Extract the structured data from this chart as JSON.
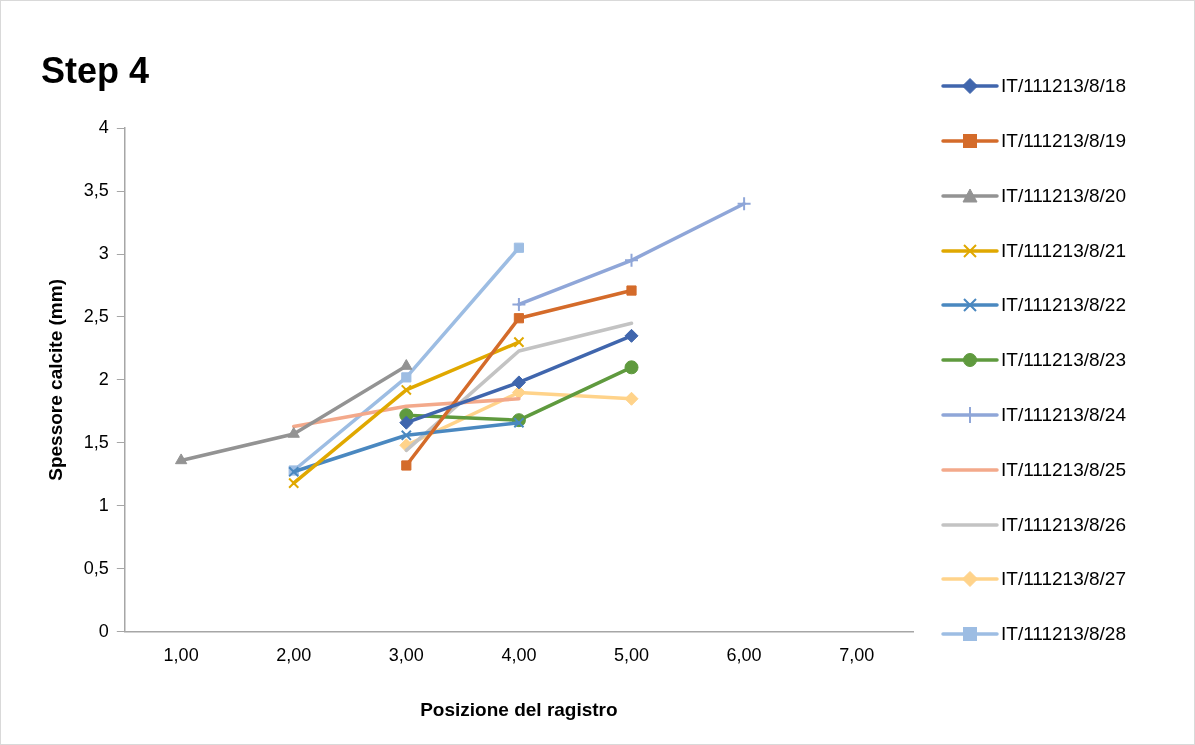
{
  "chart_data": {
    "type": "line",
    "title": "Step 4",
    "xlabel": "Posizione del ragistro",
    "ylabel": "Spessore calcite (mm)",
    "categories": [
      "1,00",
      "2,00",
      "3,00",
      "4,00",
      "5,00",
      "6,00",
      "7,00"
    ],
    "ylim": [
      0,
      4
    ],
    "yticks": [
      0,
      {
        "value": 0.5,
        "label": "0,5"
      },
      1,
      {
        "value": 1.5,
        "label": "1,5"
      },
      2,
      {
        "value": 2.5,
        "label": "2,5"
      },
      3,
      {
        "value": 3.5,
        "label": "3,5"
      },
      4
    ],
    "grid": false,
    "legend": "right",
    "series": [
      {
        "name": "IT/111213/8/18",
        "color": "#4066ad",
        "marker": "diamond",
        "values": [
          null,
          null,
          1.66,
          1.98,
          2.35,
          null,
          null
        ]
      },
      {
        "name": "IT/111213/8/19",
        "color": "#d46b2a",
        "marker": "square",
        "values": [
          null,
          null,
          1.32,
          2.49,
          2.71,
          null,
          null
        ]
      },
      {
        "name": "IT/111213/8/20",
        "color": "#939393",
        "marker": "triangle",
        "values": [
          1.36,
          1.57,
          2.11,
          null,
          null,
          null,
          null
        ]
      },
      {
        "name": "IT/111213/8/21",
        "color": "#e0a800",
        "marker": "cross",
        "values": [
          null,
          1.18,
          1.92,
          2.3,
          null,
          null,
          null
        ]
      },
      {
        "name": "IT/111213/8/22",
        "color": "#4a88c0",
        "marker": "cross",
        "values": [
          null,
          1.27,
          1.56,
          1.66,
          null,
          null,
          null
        ]
      },
      {
        "name": "IT/111213/8/23",
        "color": "#5f9a3e",
        "marker": "circle",
        "values": [
          null,
          null,
          1.72,
          1.68,
          2.1,
          null,
          null
        ]
      },
      {
        "name": "IT/111213/8/24",
        "color": "#8fa6d8",
        "marker": "plus",
        "values": [
          null,
          null,
          null,
          2.6,
          2.95,
          3.4,
          null
        ]
      },
      {
        "name": "IT/111213/8/25",
        "color": "#f3a98b",
        "marker": "none",
        "values": [
          null,
          1.63,
          1.79,
          1.85,
          null,
          null,
          null
        ]
      },
      {
        "name": "IT/111213/8/26",
        "color": "#c3c3c3",
        "marker": "none",
        "values": [
          null,
          null,
          1.44,
          2.23,
          2.45,
          null,
          null
        ]
      },
      {
        "name": "IT/111213/8/27",
        "color": "#ffd38a",
        "marker": "diamond",
        "values": [
          null,
          null,
          1.48,
          1.9,
          1.85,
          null,
          null
        ]
      },
      {
        "name": "IT/111213/8/28",
        "color": "#9dbde3",
        "marker": "square",
        "values": [
          null,
          1.28,
          2.02,
          3.05,
          null,
          null,
          null
        ]
      }
    ]
  }
}
